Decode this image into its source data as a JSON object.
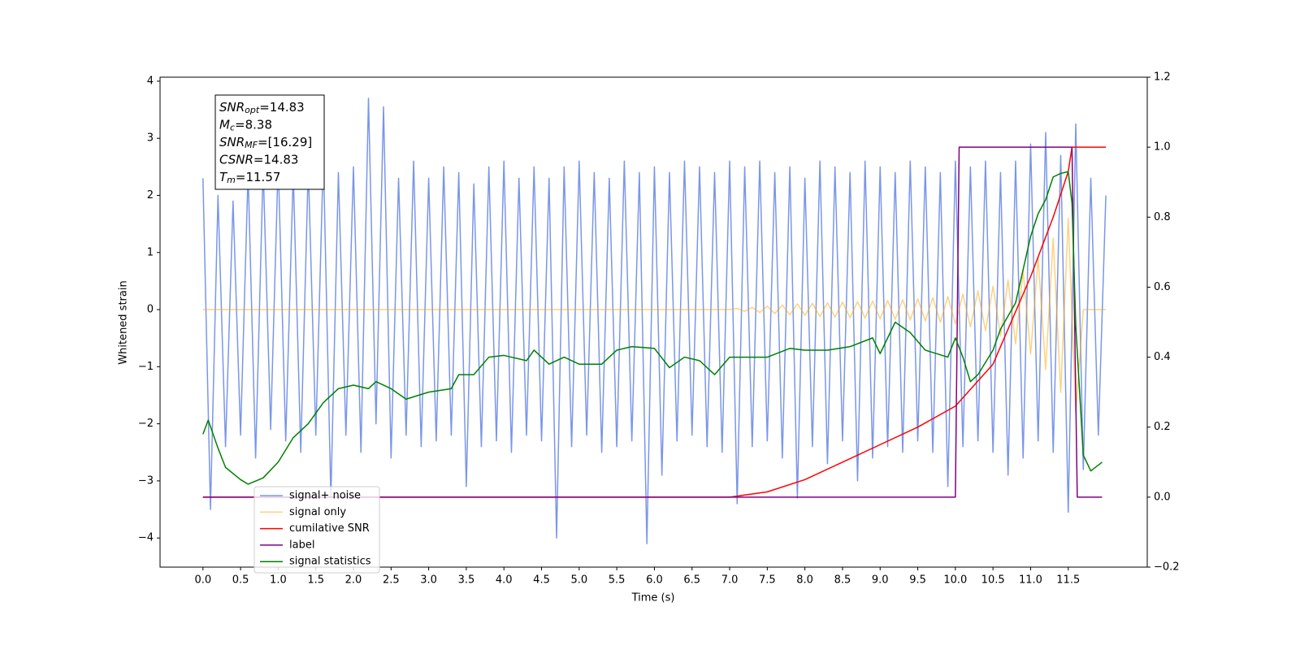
{
  "chart_data": {
    "type": "line",
    "xlabel": "Time (s)",
    "ylabel": "Whitened strain",
    "xlim": [
      -0.57,
      12.55
    ],
    "ylim": [
      -4.51,
      4.07
    ],
    "y2lim": [
      -0.2,
      1.2
    ],
    "xticks": [
      {
        "value": 0,
        "label": "0.0"
      },
      0.5,
      {
        "value": 1,
        "label": "1.0"
      },
      1.5,
      {
        "value": 2,
        "label": "2.0"
      },
      2.5,
      {
        "value": 3,
        "label": "3.0"
      },
      3.5,
      {
        "value": 4,
        "label": "4.0"
      },
      4.5,
      {
        "value": 5,
        "label": "5.0"
      },
      5.5,
      {
        "value": 6,
        "label": "6.0"
      },
      6.5,
      {
        "value": 7,
        "label": "7.0"
      },
      7.5,
      {
        "value": 8,
        "label": "8.0"
      },
      8.5,
      {
        "value": 9,
        "label": "9.0"
      },
      9.5,
      {
        "value": 10,
        "label": "10.0"
      },
      10.5,
      {
        "value": 11,
        "label": "11.0"
      },
      11.5
    ],
    "yticks": [
      {
        "value": -4,
        "label": "−4"
      },
      {
        "value": -3,
        "label": "−3"
      },
      {
        "value": -2,
        "label": "−2"
      },
      {
        "value": -1,
        "label": "−1"
      },
      0,
      1,
      2,
      3,
      4
    ],
    "y2ticks": [
      {
        "value": -0.2,
        "label": "−0.2"
      },
      {
        "value": 0,
        "label": "0.0"
      },
      0.2,
      0.4,
      0.6,
      0.8,
      {
        "value": 1,
        "label": "1.0"
      },
      1.2
    ],
    "legend": "lower left",
    "grid": false,
    "annotation": {
      "lines": [
        {
          "symbol": "SNR",
          "subscript": "opt",
          "text": "=14.83"
        },
        {
          "symbol": "M",
          "subscript": "c",
          "text": "=8.38"
        },
        {
          "symbol": "SNR",
          "subscript": "MF",
          "text": "=[16.29]"
        },
        {
          "symbol": "CSNR",
          "text": "=14.83"
        },
        {
          "symbol": "T",
          "subscript": "m",
          "text": "=11.57"
        }
      ]
    },
    "series": [
      {
        "name": "signal+ noise",
        "color": "#4169e1",
        "alpha": 0.7,
        "axis": "y",
        "x": [
          0,
          0.1,
          0.2,
          0.3,
          0.4,
          0.5,
          0.6,
          0.7,
          0.8,
          0.9,
          1,
          1.1,
          1.2,
          1.3,
          1.4,
          1.5,
          1.6,
          1.7,
          1.8,
          1.9,
          2,
          2.1,
          2.2,
          2.3,
          2.4,
          2.5,
          2.6,
          2.7,
          2.8,
          2.9,
          3,
          3.1,
          3.2,
          3.3,
          3.4,
          3.5,
          3.6,
          3.7,
          3.8,
          3.9,
          4,
          4.1,
          4.2,
          4.3,
          4.4,
          4.5,
          4.6,
          4.7,
          4.8,
          4.9,
          5,
          5.1,
          5.2,
          5.3,
          5.4,
          5.5,
          5.6,
          5.7,
          5.8,
          5.9,
          6,
          6.1,
          6.2,
          6.3,
          6.4,
          6.5,
          6.6,
          6.7,
          6.8,
          6.9,
          7,
          7.1,
          7.2,
          7.3,
          7.4,
          7.5,
          7.6,
          7.7,
          7.8,
          7.9,
          8,
          8.1,
          8.2,
          8.3,
          8.4,
          8.5,
          8.6,
          8.7,
          8.8,
          8.9,
          9,
          9.1,
          9.2,
          9.3,
          9.4,
          9.5,
          9.6,
          9.7,
          9.8,
          9.9,
          10,
          10.1,
          10.2,
          10.3,
          10.4,
          10.5,
          10.6,
          10.7,
          10.8,
          10.9,
          11,
          11.1,
          11.2,
          11.3,
          11.4,
          11.5,
          11.6,
          11.7,
          11.8,
          11.9,
          12
        ],
        "values": [
          2.3,
          -3.5,
          2.0,
          -2.4,
          1.9,
          -2.2,
          2.4,
          -2.6,
          2.5,
          -2.1,
          2.6,
          -2.3,
          2.4,
          -2.5,
          2.5,
          -2.2,
          2.7,
          -3.3,
          2.4,
          -2.2,
          2.5,
          -2.5,
          3.7,
          -2.0,
          3.55,
          -2.6,
          2.3,
          -2.2,
          2.6,
          -2.4,
          2.3,
          -2.3,
          2.5,
          -2.2,
          2.4,
          -3.1,
          2.2,
          -2.4,
          2.5,
          -2.3,
          2.6,
          -2.5,
          2.3,
          -2.2,
          2.5,
          -2.3,
          2.3,
          -4.0,
          2.5,
          -2.4,
          2.6,
          -2.2,
          2.4,
          -2.5,
          2.3,
          -2.4,
          2.6,
          -2.3,
          2.4,
          -4.1,
          2.5,
          -2.9,
          2.4,
          -2.3,
          2.6,
          -2.2,
          2.5,
          -2.4,
          2.4,
          -2.5,
          2.6,
          -3.4,
          2.5,
          -2.4,
          2.6,
          -2.3,
          2.4,
          -2.6,
          2.5,
          -3.3,
          2.3,
          -2.4,
          2.6,
          -2.7,
          2.5,
          -2.3,
          2.4,
          -3.0,
          2.6,
          -2.6,
          2.5,
          -2.4,
          2.4,
          -2.5,
          2.6,
          -2.3,
          2.5,
          -2.5,
          2.4,
          -3.1,
          2.6,
          -2.4,
          2.5,
          -2.3,
          2.6,
          -2.5,
          2.4,
          -2.9,
          2.6,
          -2.6,
          2.9,
          -2.3,
          3.1,
          -2.5,
          2.7,
          -3.55,
          3.25,
          -2.8,
          2.3,
          -2.2,
          2.0
        ]
      },
      {
        "name": "signal only",
        "color": "#ffa500",
        "alpha": 0.5,
        "axis": "y",
        "x": [
          0,
          0.1,
          0.2,
          0.3,
          0.4,
          0.5,
          0.6,
          0.7,
          0.8,
          0.9,
          1,
          1.1,
          1.2,
          1.3,
          1.4,
          1.5,
          1.6,
          1.7,
          1.8,
          1.9,
          2,
          2.1,
          2.2,
          2.3,
          2.4,
          2.5,
          2.6,
          2.7,
          2.8,
          2.9,
          3,
          3.1,
          3.2,
          3.3,
          3.4,
          3.5,
          3.6,
          3.7,
          3.8,
          3.9,
          4,
          4.1,
          4.2,
          4.3,
          4.4,
          4.5,
          4.6,
          4.7,
          4.8,
          4.9,
          5,
          5.1,
          5.2,
          5.3,
          5.4,
          5.5,
          5.6,
          5.7,
          5.8,
          5.9,
          6,
          6.1,
          6.2,
          6.3,
          6.4,
          6.5,
          6.6,
          6.7,
          6.8,
          6.9,
          7,
          7.1,
          7.2,
          7.3,
          7.4,
          7.5,
          7.6,
          7.7,
          7.8,
          7.9,
          8,
          8.1,
          8.2,
          8.3,
          8.4,
          8.5,
          8.6,
          8.7,
          8.8,
          8.9,
          9,
          9.1,
          9.2,
          9.3,
          9.4,
          9.5,
          9.6,
          9.7,
          9.8,
          9.9,
          10,
          10.1,
          10.2,
          10.3,
          10.4,
          10.5,
          10.6,
          10.7,
          10.8,
          10.9,
          11,
          11.1,
          11.2,
          11.3,
          11.4,
          11.5,
          11.6,
          11.7,
          11.8,
          11.9,
          12
        ],
        "values": [
          0,
          0,
          0,
          0,
          0,
          0,
          0,
          0,
          0,
          0,
          0,
          0,
          0,
          0,
          0,
          0,
          0,
          0,
          0,
          0,
          0,
          0,
          0,
          0,
          0,
          0,
          0,
          0,
          0,
          0,
          0,
          0,
          0,
          0,
          0,
          0,
          0,
          0,
          0,
          0,
          0,
          0,
          0,
          0,
          0,
          0,
          0,
          0,
          0,
          0,
          0,
          0,
          0,
          0,
          0,
          0,
          0,
          0,
          0,
          0,
          0,
          0,
          0,
          0,
          0,
          0,
          0,
          0,
          0,
          0,
          0,
          0.02,
          -0.03,
          0.04,
          -0.05,
          0.06,
          -0.07,
          0.08,
          -0.09,
          0.1,
          -0.1,
          0.11,
          -0.12,
          0.12,
          -0.13,
          0.13,
          -0.14,
          0.14,
          -0.15,
          0.15,
          -0.16,
          0.16,
          -0.17,
          0.17,
          -0.18,
          0.19,
          -0.2,
          0.21,
          -0.22,
          0.23,
          -0.25,
          0.27,
          -0.3,
          0.33,
          -0.37,
          0.41,
          -0.46,
          0.52,
          -0.6,
          0.68,
          -0.78,
          0.9,
          -1.05,
          1.25,
          -1.45,
          1.6,
          -1.8,
          0,
          0,
          0,
          0
        ]
      },
      {
        "name": "cumilative SNR",
        "color": "#ff0000",
        "axis": "y2",
        "x": [
          0,
          7,
          7.5,
          8,
          8.5,
          9,
          9.5,
          10,
          10.5,
          11,
          11.3,
          11.5,
          11.55,
          12
        ],
        "values": [
          0,
          0,
          0.015,
          0.05,
          0.1,
          0.15,
          0.2,
          0.26,
          0.38,
          0.63,
          0.8,
          0.93,
          1,
          1
        ]
      },
      {
        "name": "label",
        "color": "#800080",
        "axis": "y2",
        "x": [
          0,
          10,
          10.05,
          11.55,
          11.62,
          11.95
        ],
        "values": [
          0,
          0,
          1,
          1,
          0,
          0
        ]
      },
      {
        "name": "signal statistics",
        "color": "#008000",
        "axis": "y2",
        "x": [
          0,
          0.07,
          0.2,
          0.3,
          0.5,
          0.6,
          0.8,
          1,
          1.2,
          1.4,
          1.6,
          1.8,
          2,
          2.2,
          2.3,
          2.5,
          2.7,
          3,
          3.3,
          3.4,
          3.6,
          3.8,
          4,
          4.3,
          4.4,
          4.6,
          4.8,
          5,
          5.3,
          5.5,
          5.7,
          6,
          6.2,
          6.4,
          6.6,
          6.8,
          7,
          7.2,
          7.5,
          7.8,
          8,
          8.3,
          8.6,
          8.9,
          9,
          9.2,
          9.4,
          9.6,
          9.9,
          10,
          10.1,
          10.2,
          10.3,
          10.5,
          10.6,
          10.8,
          10.9,
          11,
          11.1,
          11.2,
          11.3,
          11.4,
          11.5,
          11.55,
          11.6,
          11.7,
          11.8,
          11.95
        ],
        "values": [
          0.18,
          0.22,
          0.14,
          0.085,
          0.05,
          0.037,
          0.055,
          0.1,
          0.17,
          0.21,
          0.27,
          0.31,
          0.32,
          0.31,
          0.33,
          0.31,
          0.28,
          0.3,
          0.31,
          0.35,
          0.35,
          0.4,
          0.405,
          0.39,
          0.42,
          0.38,
          0.4,
          0.38,
          0.38,
          0.42,
          0.43,
          0.425,
          0.37,
          0.4,
          0.39,
          0.35,
          0.4,
          0.4,
          0.4,
          0.425,
          0.42,
          0.42,
          0.43,
          0.455,
          0.41,
          0.5,
          0.47,
          0.42,
          0.4,
          0.455,
          0.4,
          0.33,
          0.35,
          0.42,
          0.48,
          0.555,
          0.65,
          0.745,
          0.81,
          0.85,
          0.915,
          0.925,
          0.93,
          0.84,
          0.49,
          0.12,
          0.075,
          0.1
        ]
      }
    ]
  }
}
